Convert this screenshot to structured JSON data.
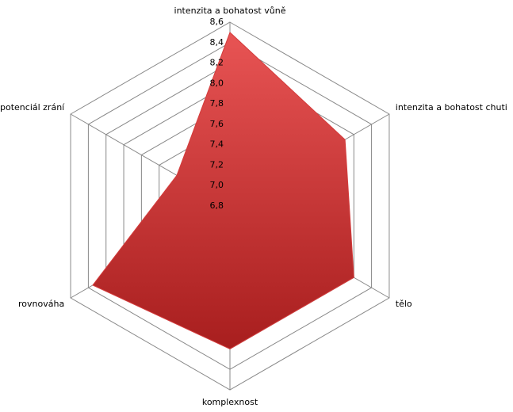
{
  "chart_data": {
    "type": "radar",
    "categories": [
      "intenzita a bohatost vůně",
      "intenzita a bohatost chuti",
      "tělo",
      "komplexnost",
      "rovnováha",
      "potenciál zrání"
    ],
    "values": [
      8.5,
      8.1,
      8.2,
      8.2,
      8.35,
      7.4
    ],
    "color": "#d43c3c",
    "rlim": [
      6.8,
      8.6
    ],
    "rticks": [
      {
        "value": 6.8,
        "label": "6,8"
      },
      {
        "value": 7.0,
        "label": "7,0"
      },
      {
        "value": 7.2,
        "label": "7,2"
      },
      {
        "value": 7.4,
        "label": "7,4"
      },
      {
        "value": 7.6,
        "label": "7,6"
      },
      {
        "value": 7.8,
        "label": "7,8"
      },
      {
        "value": 8.0,
        "label": "8,0"
      },
      {
        "value": 8.2,
        "label": "8,2"
      },
      {
        "value": 8.4,
        "label": "8,4"
      },
      {
        "value": 8.6,
        "label": "8,6"
      }
    ],
    "grid": true
  }
}
